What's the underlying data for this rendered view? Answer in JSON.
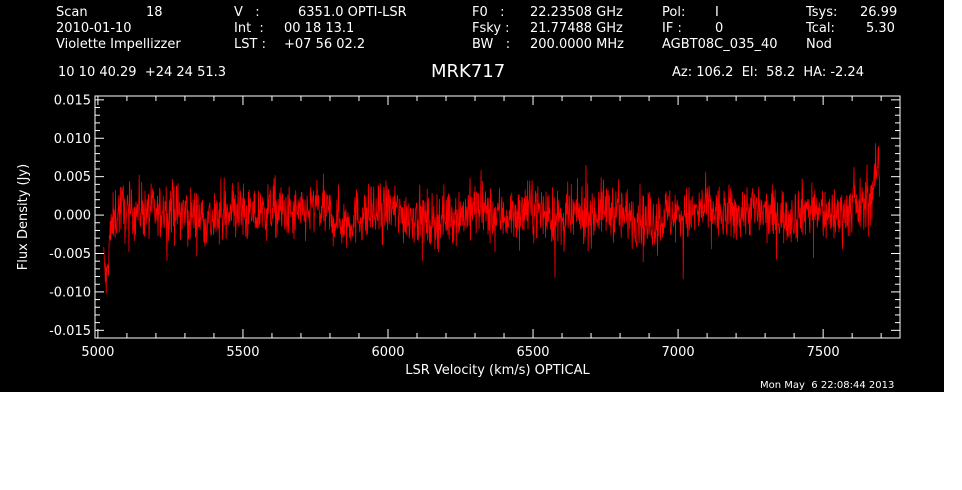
{
  "header": {
    "scan_label": "Scan",
    "scan_value": "18",
    "date": "2010-01-10",
    "observer": "Violette Impellizzer",
    "v_label": "V   :",
    "v_value": "6351.0 OPTI-LSR",
    "int_label": "Int  :",
    "int_value": "00 18 13.1",
    "lst_label": "LST :",
    "lst_value": "+07 56 02.2",
    "f0_label": "F0   :",
    "f0_value": "22.23508 GHz",
    "fsky_label": "Fsky :",
    "fsky_value": "21.77488 GHz",
    "bw_label": "BW   :",
    "bw_value": "200.0000 MHz",
    "pol_label": "Pol:",
    "pol_value": "I",
    "if_label": "IF :",
    "if_value": "0",
    "project": "AGBT08C_035_40",
    "tsys_label": "Tsys:",
    "tsys_value": "26.99",
    "tcal_label": "Tcal:",
    "tcal_value": "5.30",
    "mode": "Nod",
    "ra_dec": "10 10 40.29  +24 24 51.3",
    "source": "MRK717",
    "az_el_ha": "Az: 106.2  El:  58.2  HA: -2.24"
  },
  "footer": {
    "timestamp": "Mon May  6 22:08:44 2013"
  },
  "colors": {
    "background": "#000000",
    "axes": "#ffffff",
    "trace": "#ff0000"
  },
  "chart_data": {
    "type": "line",
    "xlabel": "LSR Velocity (km/s) OPTICAL",
    "ylabel": "Flux Density (Jy)",
    "xlim": [
      4990,
      7765
    ],
    "ylim": [
      -0.016,
      0.0155
    ],
    "xticks": [
      5000,
      5500,
      6000,
      6500,
      7000,
      7500
    ],
    "xtick_labels": [
      "5000",
      "5500",
      "6000",
      "6500",
      "7000",
      "7500"
    ],
    "yticks": [
      0.015,
      0.01,
      0.005,
      0.0,
      -0.005,
      -0.01,
      -0.015
    ],
    "ytick_labels": [
      "0.015",
      "0.010",
      "0.005",
      "0.000",
      "-0.005",
      "-0.010",
      "-0.015"
    ],
    "grid": false,
    "series": [
      {
        "x": [
          5020,
          5030,
          5040,
          5060,
          5080,
          5100,
          5150,
          5200,
          5250,
          5300,
          5350,
          5400,
          5450,
          5500,
          5550,
          5600,
          5650,
          5700,
          5750,
          5800,
          5850,
          5900,
          5950,
          6000,
          6050,
          6100,
          6150,
          6200,
          6250,
          6300,
          6350,
          6400,
          6450,
          6500,
          6550,
          6600,
          6650,
          6700,
          6750,
          6800,
          6850,
          6900,
          6950,
          7000,
          7050,
          7100,
          7150,
          7200,
          7250,
          7300,
          7350,
          7400,
          7450,
          7500,
          7550,
          7600,
          7640,
          7660,
          7675,
          7685,
          7690,
          7695
        ],
        "y": [
          -0.006,
          -0.009,
          -0.003,
          0.0,
          0.001,
          0.0,
          0.001,
          0.0,
          0.001,
          0.0,
          0.0,
          -0.001,
          0.001,
          0.0,
          0.0,
          0.001,
          0.0,
          0.0,
          0.001,
          0.0,
          -0.001,
          0.0,
          0.0,
          0.001,
          0.0,
          0.0,
          -0.001,
          0.0,
          0.0,
          0.001,
          0.0,
          0.0,
          0.0,
          0.001,
          0.0,
          -0.001,
          0.0,
          0.0,
          0.001,
          0.0,
          0.0,
          -0.001,
          0.0,
          0.0,
          0.0,
          0.001,
          0.0,
          0.0,
          0.001,
          0.0,
          0.0,
          0.0,
          0.001,
          0.0,
          0.0,
          0.001,
          0.001,
          0.002,
          0.004,
          0.006,
          0.007,
          0.004
        ],
        "noise_amplitude": 0.0035
      }
    ]
  }
}
